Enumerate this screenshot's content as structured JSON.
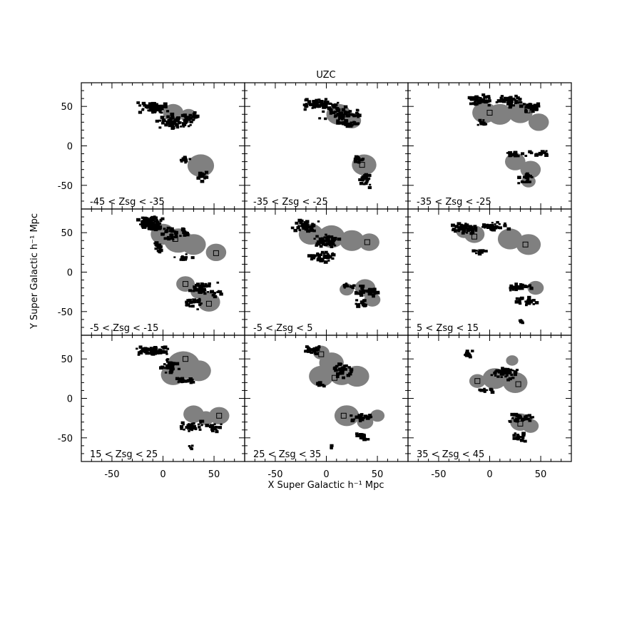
{
  "chart_data": {
    "type": "scatter",
    "title": "UZC",
    "xlabel": "X Super Galactic h⁻¹ Mpc",
    "ylabel": "Y Super Galactic h⁻¹ Mpc",
    "xlim": [
      -80,
      80
    ],
    "ylim": [
      -80,
      80
    ],
    "xticks": [
      -50,
      0,
      50
    ],
    "yticks": [
      -50,
      0,
      50
    ],
    "grid": false,
    "layout": "3x3 panels, shared axes",
    "colors": {
      "galaxies": "#000000",
      "overdensity": "#808080",
      "frame": "#000000"
    },
    "panels": [
      {
        "label": "-45 < Zsg < -35",
        "centers": [],
        "regions": [
          [
            10,
            42,
            10
          ],
          [
            25,
            38,
            8
          ],
          [
            37,
            -25,
            13
          ]
        ],
        "groups": [
          [
            -10,
            48,
            16,
            8,
            70
          ],
          [
            10,
            30,
            20,
            10,
            70
          ],
          [
            28,
            38,
            10,
            6,
            25
          ],
          [
            22,
            -18,
            6,
            4,
            12
          ],
          [
            38,
            -38,
            5,
            8,
            12
          ]
        ]
      },
      {
        "label": "-35 < Zsg < -25",
        "centers": [
          [
            17,
            40
          ],
          [
            35,
            -24
          ]
        ],
        "regions": [
          [
            12,
            40,
            12
          ],
          [
            25,
            32,
            9
          ],
          [
            37,
            -24,
            12
          ]
        ],
        "groups": [
          [
            -5,
            52,
            18,
            8,
            70
          ],
          [
            15,
            40,
            22,
            10,
            60
          ],
          [
            20,
            28,
            14,
            4,
            25
          ],
          [
            32,
            -18,
            6,
            5,
            15
          ],
          [
            38,
            -45,
            8,
            10,
            20
          ]
        ]
      },
      {
        "label": "-35 < Zsg < -25",
        "centers": [
          [
            0,
            42
          ],
          [
            37,
            45
          ]
        ],
        "regions": [
          [
            -5,
            42,
            12
          ],
          [
            10,
            40,
            12
          ],
          [
            30,
            42,
            12
          ],
          [
            48,
            30,
            10
          ],
          [
            25,
            -20,
            10
          ],
          [
            40,
            -30,
            10
          ],
          [
            38,
            -45,
            7
          ]
        ],
        "groups": [
          [
            -10,
            58,
            12,
            8,
            45
          ],
          [
            20,
            56,
            14,
            8,
            45
          ],
          [
            40,
            48,
            12,
            6,
            35
          ],
          [
            -8,
            28,
            6,
            6,
            10
          ],
          [
            25,
            -12,
            12,
            4,
            20
          ],
          [
            48,
            -10,
            10,
            4,
            15
          ],
          [
            35,
            -42,
            10,
            10,
            20
          ]
        ]
      },
      {
        "label": "-5 < Zsg < -15",
        "centers": [
          [
            12,
            42
          ],
          [
            52,
            24
          ],
          [
            22,
            -15
          ],
          [
            45,
            -40
          ]
        ],
        "regions": [
          [
            0,
            48,
            12
          ],
          [
            15,
            40,
            14
          ],
          [
            30,
            35,
            12
          ],
          [
            52,
            25,
            10
          ],
          [
            22,
            -15,
            9
          ],
          [
            45,
            -38,
            11
          ],
          [
            35,
            -25,
            8
          ]
        ],
        "groups": [
          [
            -12,
            62,
            14,
            10,
            110
          ],
          [
            10,
            48,
            18,
            8,
            40
          ],
          [
            -5,
            30,
            6,
            8,
            15
          ],
          [
            20,
            18,
            10,
            5,
            15
          ],
          [
            40,
            -20,
            15,
            8,
            35
          ],
          [
            30,
            -40,
            10,
            8,
            20
          ],
          [
            52,
            -28,
            6,
            5,
            10
          ]
        ]
      },
      {
        "label": "-5 < Zsg < 5",
        "centers": [
          [
            40,
            38
          ]
        ],
        "regions": [
          [
            -15,
            48,
            12
          ],
          [
            5,
            45,
            13
          ],
          [
            25,
            40,
            12
          ],
          [
            42,
            38,
            10
          ],
          [
            20,
            -22,
            7
          ],
          [
            38,
            -20,
            10
          ],
          [
            45,
            -35,
            8
          ]
        ],
        "groups": [
          [
            -20,
            58,
            14,
            8,
            45
          ],
          [
            0,
            40,
            14,
            10,
            60
          ],
          [
            -5,
            20,
            14,
            8,
            40
          ],
          [
            20,
            -18,
            8,
            5,
            15
          ],
          [
            40,
            -25,
            15,
            8,
            35
          ],
          [
            35,
            -40,
            8,
            8,
            15
          ]
        ]
      },
      {
        "label": "5 < Zsg < 15",
        "centers": [
          [
            -15,
            45
          ],
          [
            35,
            35
          ]
        ],
        "regions": [
          [
            -15,
            48,
            10
          ],
          [
            -25,
            52,
            8
          ],
          [
            20,
            42,
            12
          ],
          [
            38,
            35,
            12
          ],
          [
            45,
            -20,
            8
          ]
        ],
        "groups": [
          [
            -25,
            55,
            14,
            8,
            55
          ],
          [
            5,
            58,
            14,
            6,
            35
          ],
          [
            -10,
            25,
            8,
            4,
            10
          ],
          [
            30,
            -20,
            14,
            5,
            30
          ],
          [
            35,
            -38,
            14,
            6,
            25
          ],
          [
            30,
            -62,
            3,
            3,
            4
          ]
        ]
      },
      {
        "label": "15 < Zsg < 25",
        "centers": [
          [
            22,
            50
          ],
          [
            55,
            -22
          ]
        ],
        "regions": [
          [
            20,
            42,
            16
          ],
          [
            10,
            30,
            12
          ],
          [
            35,
            35,
            12
          ],
          [
            30,
            -20,
            10
          ],
          [
            55,
            -22,
            10
          ],
          [
            42,
            -25,
            8
          ]
        ],
        "groups": [
          [
            -10,
            60,
            18,
            6,
            60
          ],
          [
            8,
            40,
            10,
            10,
            35
          ],
          [
            20,
            22,
            10,
            6,
            20
          ],
          [
            30,
            -35,
            14,
            8,
            35
          ],
          [
            50,
            -38,
            8,
            6,
            15
          ],
          [
            28,
            -62,
            4,
            3,
            5
          ]
        ]
      },
      {
        "label": "25 < Zsg < 35",
        "centers": [
          [
            -5,
            56
          ],
          [
            8,
            26
          ],
          [
            17,
            -22
          ]
        ],
        "regions": [
          [
            -5,
            58,
            8
          ],
          [
            5,
            45,
            12
          ],
          [
            15,
            30,
            12
          ],
          [
            -5,
            28,
            12
          ],
          [
            30,
            28,
            12
          ],
          [
            20,
            -22,
            12
          ],
          [
            50,
            -22,
            7
          ],
          [
            38,
            -30,
            8
          ]
        ],
        "groups": [
          [
            -12,
            62,
            12,
            6,
            25
          ],
          [
            15,
            35,
            12,
            10,
            40
          ],
          [
            -5,
            18,
            6,
            4,
            10
          ],
          [
            35,
            -25,
            12,
            6,
            30
          ],
          [
            35,
            -48,
            8,
            6,
            15
          ],
          [
            5,
            -62,
            3,
            3,
            4
          ]
        ]
      },
      {
        "label": "35 < Zsg < 45",
        "centers": [
          [
            -12,
            22
          ],
          [
            28,
            18
          ],
          [
            30,
            -32
          ]
        ],
        "regions": [
          [
            -12,
            22,
            8
          ],
          [
            5,
            25,
            12
          ],
          [
            25,
            20,
            12
          ],
          [
            22,
            48,
            6
          ],
          [
            30,
            -30,
            10
          ],
          [
            40,
            -35,
            8
          ]
        ],
        "groups": [
          [
            -22,
            55,
            6,
            5,
            15
          ],
          [
            15,
            30,
            14,
            10,
            40
          ],
          [
            -5,
            10,
            10,
            4,
            10
          ],
          [
            30,
            -25,
            15,
            6,
            30
          ],
          [
            30,
            -50,
            8,
            6,
            15
          ]
        ]
      }
    ]
  }
}
